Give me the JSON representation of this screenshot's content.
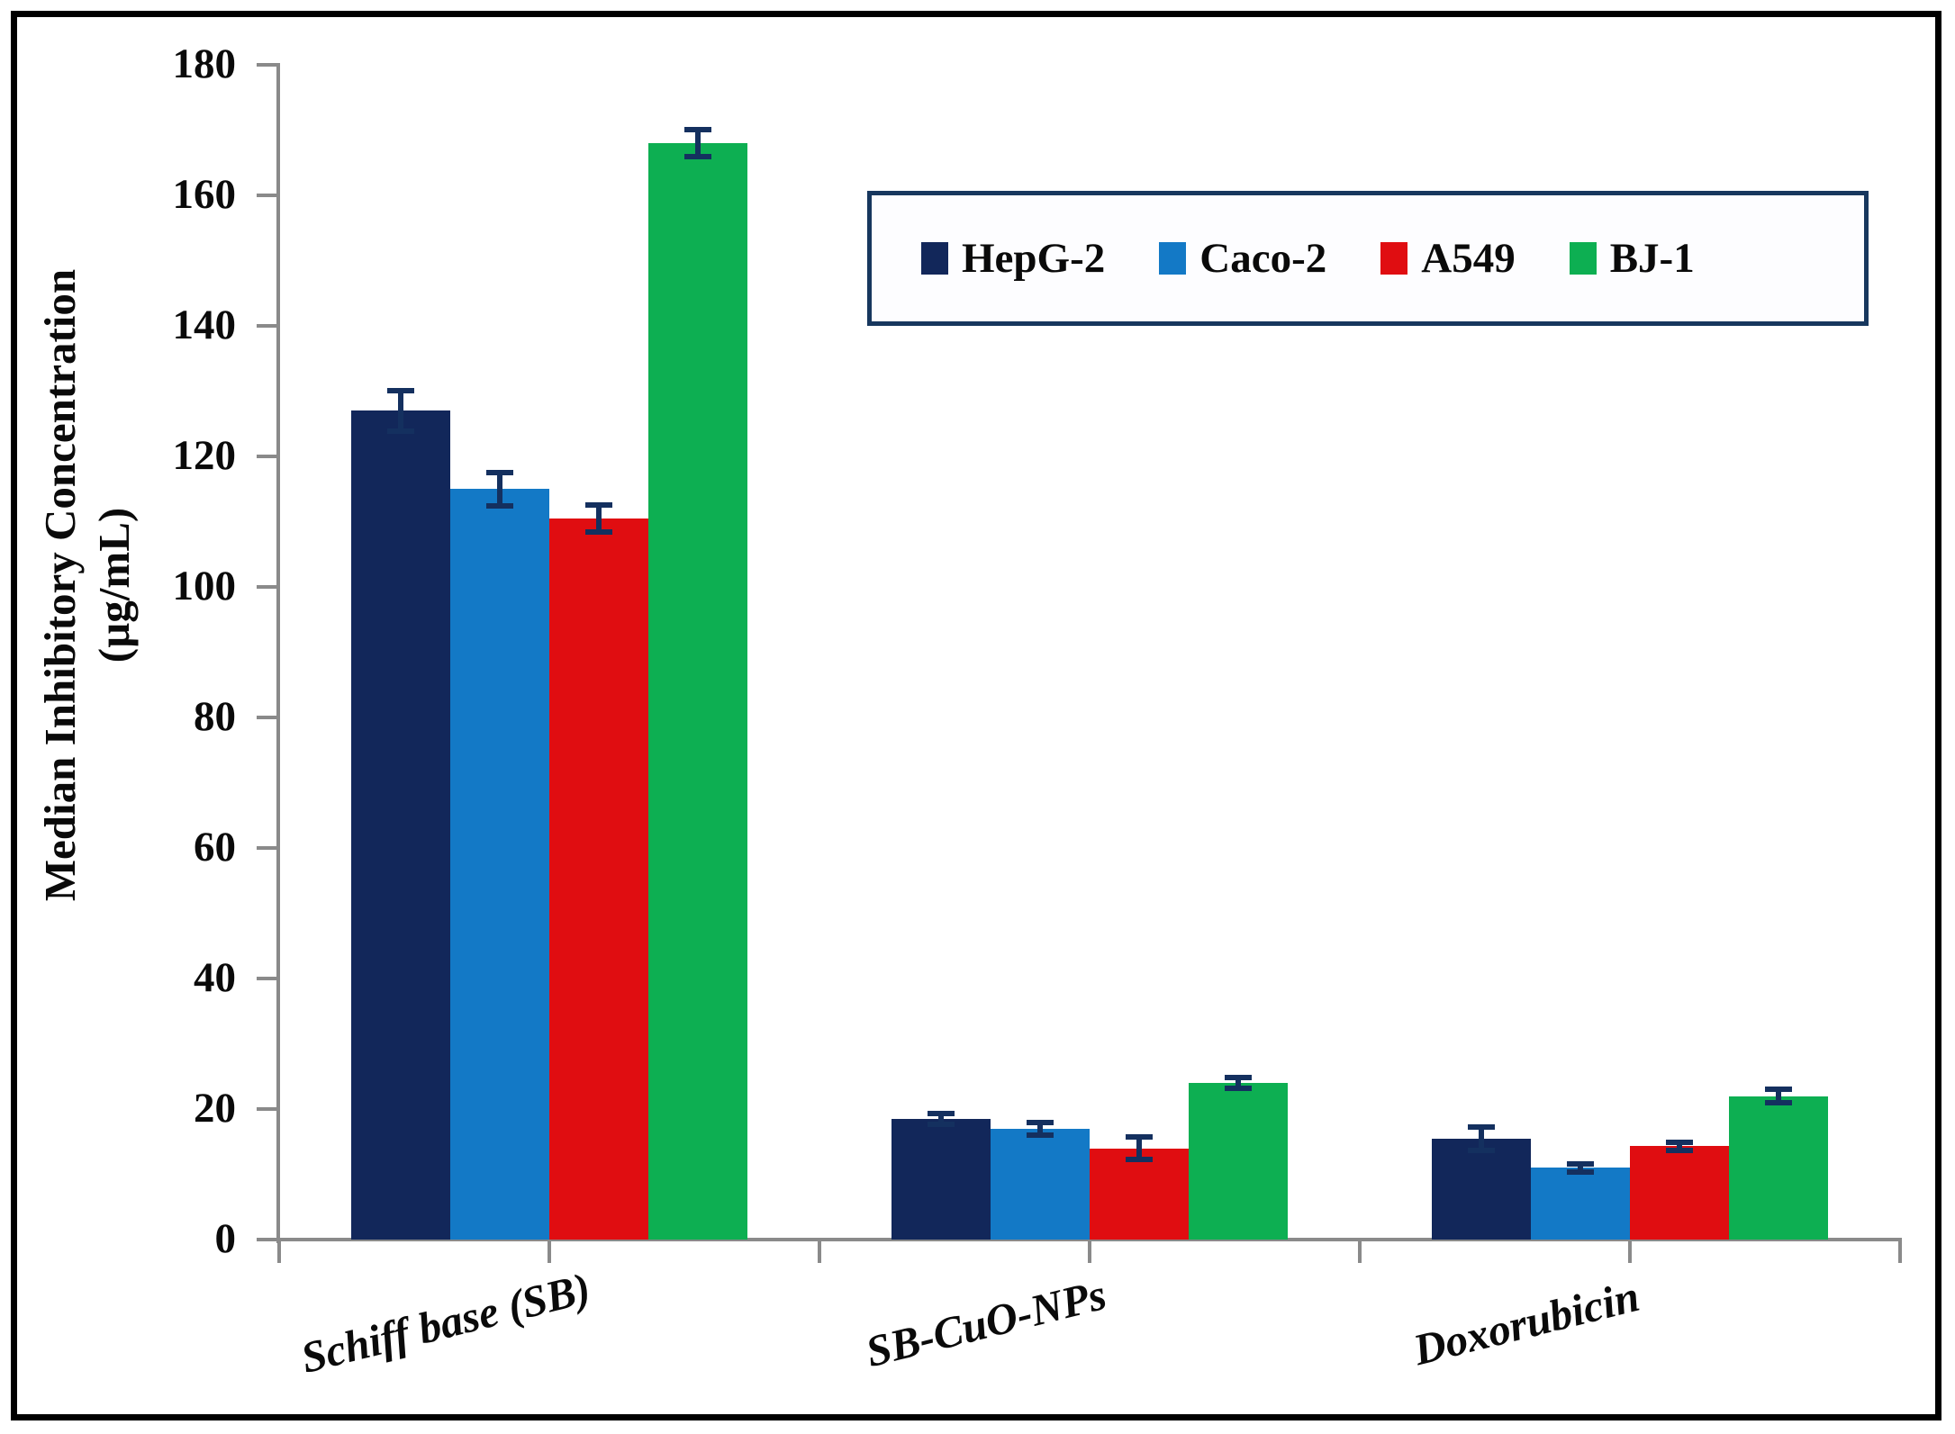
{
  "chart_data": {
    "type": "bar",
    "title": "",
    "xlabel": "",
    "ylabel_line1": "Median Inhibitory Concentration",
    "ylabel_line2": "(µg/mL)",
    "categories": [
      "Schiff base (SB)",
      "SB-CuO-NPs",
      "Doxorubicin"
    ],
    "series": [
      {
        "name": "HepG-2",
        "color": "#12275a",
        "values": [
          127,
          18.5,
          15.5
        ],
        "errors": [
          3.5,
          1.2,
          2.2
        ]
      },
      {
        "name": "Caco-2",
        "color": "#1379c6",
        "values": [
          115,
          17,
          11
        ],
        "errors": [
          3,
          1.4,
          1
        ]
      },
      {
        "name": "A549",
        "color": "#e00d11",
        "values": [
          110.5,
          14,
          14.3
        ],
        "errors": [
          2.5,
          2.2,
          1
        ]
      },
      {
        "name": "BJ-1",
        "color": "#0daf52",
        "values": [
          168,
          24,
          22
        ],
        "errors": [
          2.5,
          1.2,
          1.5
        ]
      }
    ],
    "ylim": [
      0,
      180
    ],
    "ytick_step": 20,
    "ytick_labels": [
      "0",
      "20",
      "40",
      "60",
      "80",
      "100",
      "120",
      "140",
      "160",
      "180"
    ],
    "grid": false,
    "legend_position": "top-right",
    "error_bar_color": "#14305f",
    "axis_color": "#8a8a8a",
    "legend_border_color": "#17375e",
    "outer_border_color": "#000000"
  }
}
